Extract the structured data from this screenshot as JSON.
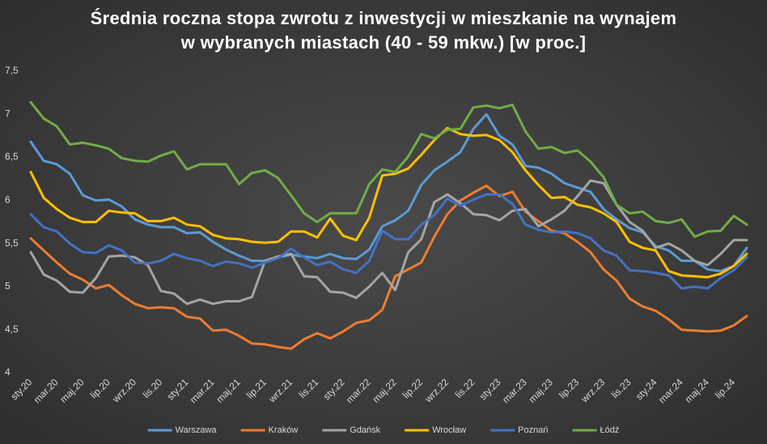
{
  "chart_data": {
    "type": "line",
    "title": "Średnia roczna stopa zwrotu z inwestycji w mieszkanie na wynajem w wybranych miastach (40 - 59 mkw.) [w proc.]",
    "categories": [
      "sty.20",
      null,
      "mar.20",
      null,
      "maj.20",
      null,
      "lip.20",
      null,
      "wrz.20",
      null,
      "lis.20",
      null,
      "sty.21",
      null,
      "mar.21",
      null,
      "maj.21",
      null,
      "lip.21",
      null,
      "wrz.21",
      null,
      "lis.21",
      null,
      "sty.22",
      null,
      "mar.22",
      null,
      "maj.22",
      null,
      "lip.22",
      null,
      "wrz.22",
      null,
      "lis.22",
      null,
      "sty.23",
      null,
      "mar.23",
      null,
      "maj.23",
      null,
      "lip.23",
      null,
      "wrz.23",
      null,
      "lis.23",
      null,
      "sty.24",
      null,
      "mar.24",
      null,
      "maj.24",
      null,
      "lip.24",
      null
    ],
    "ylim": [
      4,
      7.5
    ],
    "yticks": [
      4,
      {
        "value": 4.5,
        "label": "4,5"
      },
      5,
      {
        "value": 5.5,
        "label": "5,5"
      },
      6,
      {
        "value": 6.5,
        "label": "6,5"
      },
      7,
      {
        "value": 7.5,
        "label": "7,5"
      }
    ],
    "grid": false,
    "legend": "bottom",
    "series": [
      {
        "name": "Warszawa",
        "color": "#5b9bd5",
        "values": [
          6.68,
          6.46,
          6.42,
          6.31,
          6.06,
          6.0,
          6.01,
          5.93,
          5.78,
          5.72,
          5.69,
          5.69,
          5.62,
          5.63,
          5.52,
          5.43,
          5.36,
          5.3,
          5.3,
          5.34,
          5.37,
          5.35,
          5.33,
          5.38,
          5.33,
          5.32,
          5.43,
          5.7,
          5.77,
          5.88,
          6.18,
          6.35,
          6.45,
          6.56,
          6.83,
          7.0,
          6.75,
          6.65,
          6.4,
          6.38,
          6.31,
          6.2,
          6.15,
          6.1,
          5.9,
          5.78,
          5.68,
          5.63,
          5.47,
          5.42,
          5.3,
          5.3,
          5.2,
          5.18,
          5.24,
          5.45
        ]
      },
      {
        "name": "Kraków",
        "color": "#ed7d31",
        "values": [
          5.56,
          5.42,
          5.28,
          5.15,
          5.08,
          4.98,
          5.02,
          4.9,
          4.8,
          4.75,
          4.76,
          4.75,
          4.65,
          4.63,
          4.49,
          4.5,
          4.43,
          4.34,
          4.33,
          4.3,
          4.28,
          4.39,
          4.46,
          4.4,
          4.48,
          4.58,
          4.61,
          4.73,
          5.12,
          5.2,
          5.28,
          5.58,
          5.84,
          6.0,
          6.09,
          6.17,
          6.05,
          6.1,
          5.87,
          5.76,
          5.65,
          5.62,
          5.52,
          5.4,
          5.2,
          5.07,
          4.86,
          4.77,
          4.72,
          4.62,
          4.5,
          4.49,
          4.48,
          4.49,
          4.55,
          4.66
        ]
      },
      {
        "name": "Gdańsk",
        "color": "#a5a5a5",
        "values": [
          5.4,
          5.14,
          5.07,
          4.94,
          4.93,
          5.1,
          5.35,
          5.36,
          5.34,
          5.25,
          4.95,
          4.92,
          4.8,
          4.85,
          4.8,
          4.83,
          4.83,
          4.88,
          5.3,
          5.35,
          5.38,
          5.12,
          5.11,
          4.94,
          4.93,
          4.87,
          5.0,
          5.16,
          4.96,
          5.4,
          5.55,
          5.98,
          6.07,
          5.97,
          5.84,
          5.83,
          5.77,
          5.88,
          5.9,
          5.7,
          5.78,
          5.88,
          6.05,
          6.23,
          6.2,
          5.95,
          5.75,
          5.65,
          5.45,
          5.5,
          5.42,
          5.3,
          5.25,
          5.38,
          5.54,
          5.54
        ]
      },
      {
        "name": "Wrocław",
        "color": "#ffc000",
        "values": [
          6.33,
          6.03,
          5.9,
          5.8,
          5.75,
          5.75,
          5.88,
          5.86,
          5.85,
          5.76,
          5.76,
          5.8,
          5.72,
          5.7,
          5.6,
          5.56,
          5.55,
          5.52,
          5.51,
          5.52,
          5.64,
          5.64,
          5.57,
          5.79,
          5.59,
          5.54,
          5.8,
          6.29,
          6.31,
          6.37,
          6.53,
          6.7,
          6.84,
          6.77,
          6.75,
          6.76,
          6.7,
          6.56,
          6.35,
          6.18,
          6.03,
          6.04,
          5.95,
          5.92,
          5.85,
          5.75,
          5.52,
          5.45,
          5.42,
          5.18,
          5.13,
          5.12,
          5.11,
          5.15,
          5.24,
          5.38
        ]
      },
      {
        "name": "Poznań",
        "color": "#4472c4",
        "values": [
          5.84,
          5.69,
          5.64,
          5.5,
          5.4,
          5.39,
          5.48,
          5.42,
          5.28,
          5.27,
          5.3,
          5.38,
          5.33,
          5.3,
          5.24,
          5.29,
          5.27,
          5.22,
          5.28,
          5.33,
          5.44,
          5.34,
          5.25,
          5.29,
          5.2,
          5.16,
          5.3,
          5.65,
          5.55,
          5.55,
          5.72,
          5.83,
          6.02,
          5.94,
          6.01,
          6.07,
          6.07,
          5.96,
          5.72,
          5.66,
          5.63,
          5.64,
          5.62,
          5.56,
          5.42,
          5.36,
          5.19,
          5.18,
          5.16,
          5.13,
          4.98,
          5.0,
          4.98,
          5.1,
          5.19,
          5.34
        ]
      },
      {
        "name": "Łódź",
        "color": "#70ad47",
        "values": [
          7.14,
          6.95,
          6.86,
          6.65,
          6.67,
          6.64,
          6.6,
          6.49,
          6.46,
          6.45,
          6.52,
          6.57,
          6.36,
          6.42,
          6.42,
          6.42,
          6.19,
          6.32,
          6.35,
          6.26,
          6.06,
          5.85,
          5.75,
          5.85,
          5.85,
          5.85,
          6.19,
          6.36,
          6.33,
          6.51,
          6.77,
          6.72,
          6.82,
          6.83,
          7.08,
          7.1,
          7.07,
          7.11,
          6.8,
          6.6,
          6.62,
          6.55,
          6.58,
          6.45,
          6.27,
          5.95,
          5.85,
          5.87,
          5.76,
          5.74,
          5.78,
          5.58,
          5.64,
          5.65,
          5.82,
          5.72
        ]
      }
    ]
  }
}
